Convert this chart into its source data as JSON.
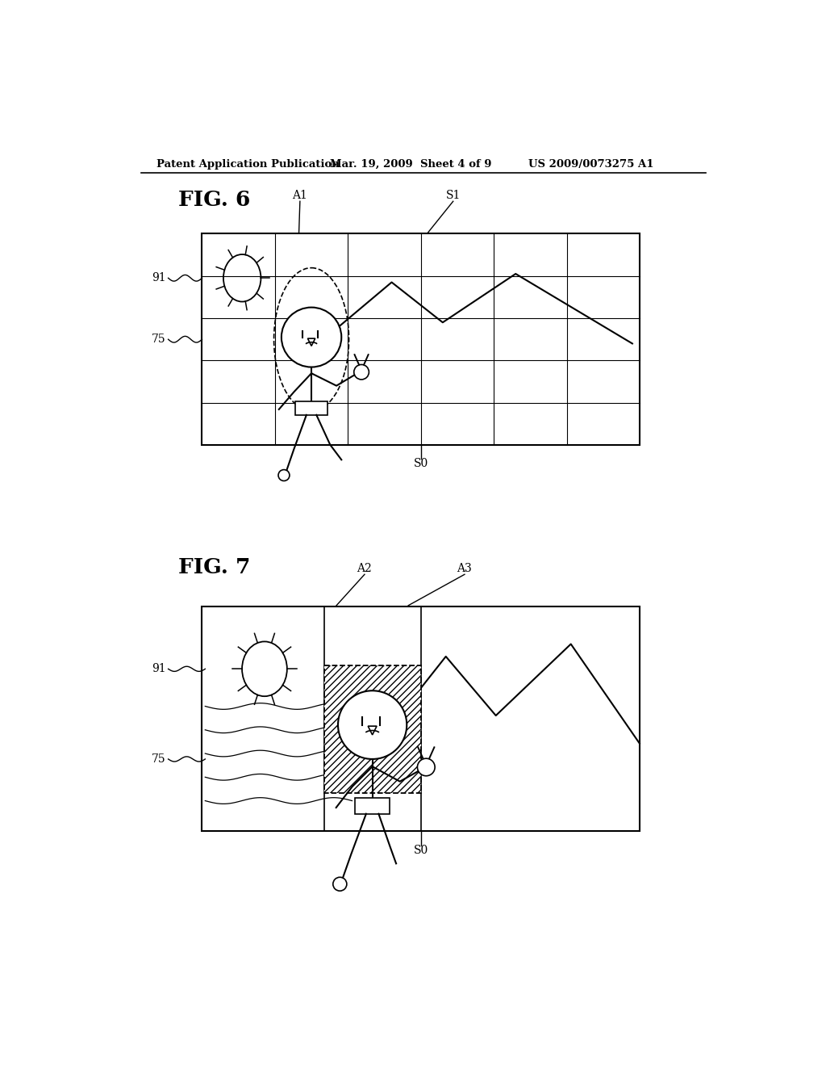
{
  "bg_color": "#ffffff",
  "header_text": "Patent Application Publication",
  "header_date": "Mar. 19, 2009  Sheet 4 of 9",
  "header_patent": "US 2009/0073275 A1",
  "fig6_title": "FIG. 6",
  "fig7_title": "FIG. 7",
  "lc": "#000000"
}
